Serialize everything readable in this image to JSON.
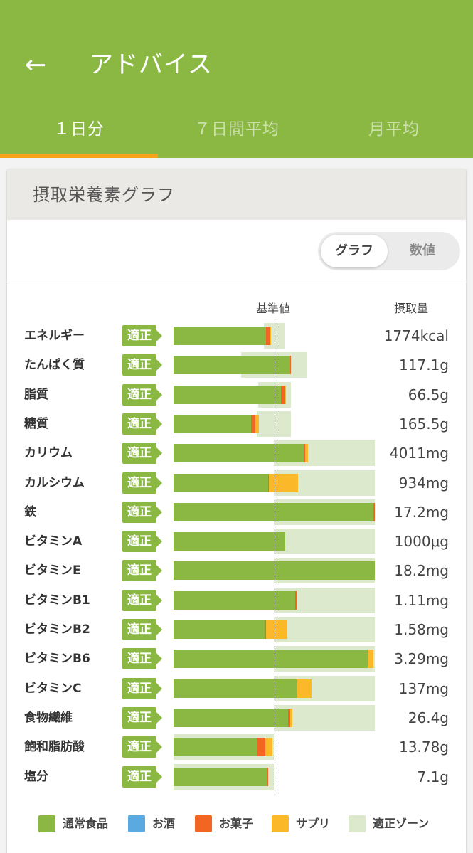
{
  "header": {
    "title": "アドバイス",
    "back_icon": "←",
    "tabs": [
      {
        "label": "１日分",
        "active": true
      },
      {
        "label": "７日間平均",
        "active": false
      },
      {
        "label": "月平均",
        "active": false
      }
    ]
  },
  "card": {
    "title": "摂取栄養素グラフ",
    "toggle": {
      "graph_label": "グラフ",
      "numeric_label": "数値",
      "selected": "グラフ"
    },
    "columns": {
      "baseline_label": "基準値",
      "intake_label": "摂取量"
    }
  },
  "colors": {
    "normal_food": "#8ab843",
    "alcohol": "#5aa9e0",
    "snack": "#f26522",
    "supplement": "#fbb829",
    "zone": "#dce9cc"
  },
  "legend": [
    {
      "key": "normal_food",
      "label": "通常食品"
    },
    {
      "key": "alcohol",
      "label": "お酒"
    },
    {
      "key": "snack",
      "label": "お菓子"
    },
    {
      "key": "supplement",
      "label": "サプリ"
    },
    {
      "key": "zone",
      "label": "適正ゾーン"
    }
  ],
  "chart_data": {
    "type": "bar",
    "orientation": "horizontal",
    "stacked": true,
    "x_unit": "percent of reference value",
    "reference_value": 100,
    "xlim": [
      0,
      200
    ],
    "categories": [
      "エネルギー",
      "たんぱく質",
      "脂質",
      "糖質",
      "カリウム",
      "カルシウム",
      "鉄",
      "ビタミンA",
      "ビタミンE",
      "ビタミンB1",
      "ビタミンB2",
      "ビタミンB6",
      "ビタミンC",
      "食物繊維",
      "飽和脂肪酸",
      "塩分"
    ],
    "status": [
      "適正",
      "適正",
      "適正",
      "適正",
      "適正",
      "適正",
      "適正",
      "適正",
      "適正",
      "適正",
      "適正",
      "適正",
      "適正",
      "適正",
      "適正",
      "適正"
    ],
    "intake_labels": [
      "1774kcal",
      "117.1g",
      "66.5g",
      "165.5g",
      "4011mg",
      "934mg",
      "17.2mg",
      "1000μg",
      "18.2mg",
      "1.11mg",
      "1.58mg",
      "3.29mg",
      "137mg",
      "26.4g",
      "13.78g",
      "7.1g"
    ],
    "series": [
      {
        "name": "通常食品",
        "key": "normal_food",
        "values": [
          92,
          116,
          107,
          77,
          130,
          94,
          199,
          111,
          200,
          121,
          91,
          193,
          123,
          114,
          83,
          93
        ]
      },
      {
        "name": "お酒",
        "key": "alcohol",
        "values": [
          0,
          0,
          0,
          0,
          0,
          0,
          0,
          0,
          0,
          0,
          0,
          0,
          0,
          0,
          0,
          0
        ]
      },
      {
        "name": "お菓子",
        "key": "snack",
        "values": [
          4,
          1,
          3,
          4,
          1,
          1,
          1,
          0,
          0,
          1,
          1,
          0,
          0,
          2,
          8,
          1
        ]
      },
      {
        "name": "サプリ",
        "key": "supplement",
        "values": [
          1,
          0,
          2,
          4,
          3,
          29,
          0,
          0,
          0,
          0,
          21,
          6,
          14,
          2,
          7,
          0
        ]
      }
    ],
    "zones": [
      [
        90,
        110
      ],
      [
        67,
        133
      ],
      [
        84,
        117
      ],
      [
        83,
        117
      ],
      [
        100,
        200
      ],
      [
        100,
        200
      ],
      [
        100,
        200
      ],
      [
        100,
        200
      ],
      [
        100,
        200
      ],
      [
        100,
        200
      ],
      [
        100,
        200
      ],
      [
        100,
        200
      ],
      [
        100,
        200
      ],
      [
        100,
        200
      ],
      [
        0,
        100
      ],
      [
        0,
        100
      ]
    ]
  }
}
